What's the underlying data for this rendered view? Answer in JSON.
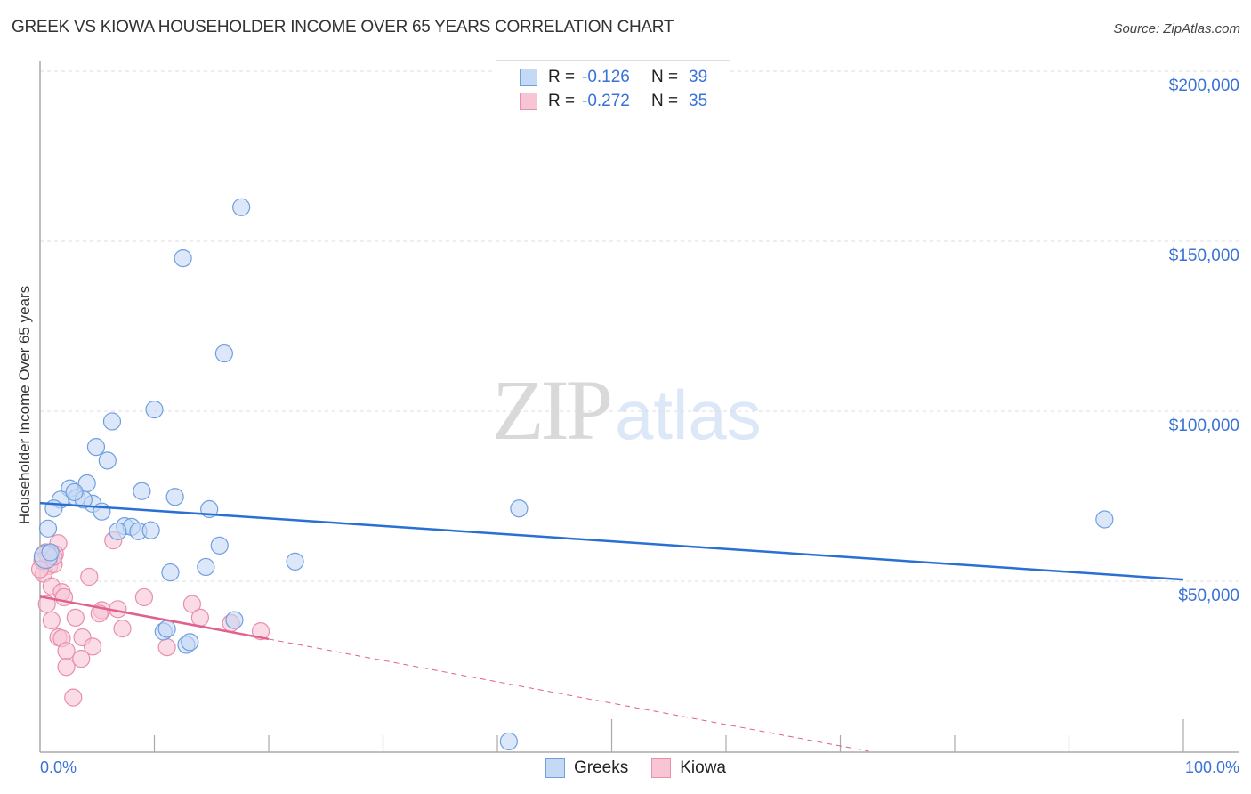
{
  "header": {
    "title": "GREEK VS KIOWA HOUSEHOLDER INCOME OVER 65 YEARS CORRELATION CHART",
    "source": "Source: ZipAtlas.com"
  },
  "colors": {
    "greeks_fill": "#c5d9f5",
    "greeks_stroke": "#6f9fe0",
    "greeks_line": "#2a6fd4",
    "kiowa_fill": "#f8c5d5",
    "kiowa_stroke": "#e88fab",
    "kiowa_line": "#e0608e",
    "axis_label": "#3a72d8",
    "grid": "#dddddd"
  },
  "legend_top": {
    "greeks": {
      "r_label": "R =",
      "r_value": "-0.126",
      "n_label": "N =",
      "n_value": "39"
    },
    "kiowa": {
      "r_label": "R =",
      "r_value": "-0.272",
      "n_label": "N =",
      "n_value": "35"
    }
  },
  "legend_bottom": {
    "greeks": "Greeks",
    "kiowa": "Kiowa"
  },
  "watermark": {
    "zip": "ZIP",
    "atlas": "atlas"
  },
  "axes": {
    "ylabel": "Householder Income Over 65 years",
    "yticks": [
      "$200,000",
      "$150,000",
      "$100,000",
      "$50,000"
    ],
    "xticks": [
      "0.0%",
      "100.0%"
    ]
  },
  "chart_data": {
    "type": "scatter",
    "title": "GREEK VS KIOWA HOUSEHOLDER INCOME OVER 65 YEARS CORRELATION CHART",
    "xlabel": "",
    "ylabel": "Householder Income Over 65 years",
    "xlim": [
      0,
      100
    ],
    "ylim": [
      0,
      205000
    ],
    "x_unit": "%",
    "grid": true,
    "legend_position": "top-center",
    "series": [
      {
        "name": "Greeks",
        "R": -0.126,
        "N": 39,
        "points": [
          [
            17.6,
            160000
          ],
          [
            12.5,
            145000
          ],
          [
            16.1,
            117000
          ],
          [
            10.0,
            100500
          ],
          [
            6.3,
            97000
          ],
          [
            4.9,
            89500
          ],
          [
            5.9,
            85500
          ],
          [
            4.1,
            78800
          ],
          [
            2.6,
            77300
          ],
          [
            8.9,
            76500
          ],
          [
            1.8,
            74000
          ],
          [
            3.2,
            74500
          ],
          [
            11.8,
            74800
          ],
          [
            1.2,
            71400
          ],
          [
            4.6,
            72800
          ],
          [
            5.4,
            70500
          ],
          [
            14.8,
            71200
          ],
          [
            41.9,
            71400
          ],
          [
            93.1,
            68200
          ],
          [
            7.4,
            66200
          ],
          [
            8.0,
            66000
          ],
          [
            8.6,
            64700
          ],
          [
            9.7,
            65000
          ],
          [
            6.8,
            64700
          ],
          [
            0.7,
            65500
          ],
          [
            15.7,
            60500
          ],
          [
            22.3,
            55800
          ],
          [
            11.4,
            52600
          ],
          [
            14.5,
            54200
          ],
          [
            17.0,
            38600
          ],
          [
            10.8,
            35200
          ],
          [
            11.1,
            36000
          ],
          [
            12.8,
            31300
          ],
          [
            13.1,
            32100
          ],
          [
            41.0,
            2900
          ],
          [
            0.5,
            57200
          ],
          [
            0.9,
            58500
          ],
          [
            3.8,
            74000
          ],
          [
            3.0,
            76200
          ]
        ],
        "trend": {
          "x": [
            0,
            100
          ],
          "y": [
            73000,
            50500
          ]
        }
      },
      {
        "name": "Kiowa",
        "R": -0.272,
        "N": 35,
        "points": [
          [
            6.4,
            62000
          ],
          [
            1.6,
            61200
          ],
          [
            1.3,
            58000
          ],
          [
            0.5,
            58500
          ],
          [
            0.8,
            54500
          ],
          [
            0.3,
            52200
          ],
          [
            1.0,
            48500
          ],
          [
            4.3,
            51300
          ],
          [
            1.9,
            46800
          ],
          [
            2.1,
            45300
          ],
          [
            9.1,
            45300
          ],
          [
            0.6,
            43300
          ],
          [
            13.3,
            43300
          ],
          [
            5.4,
            41500
          ],
          [
            6.8,
            41800
          ],
          [
            3.1,
            39300
          ],
          [
            14.0,
            39300
          ],
          [
            1.0,
            38500
          ],
          [
            5.2,
            40500
          ],
          [
            7.2,
            36100
          ],
          [
            16.7,
            37700
          ],
          [
            19.3,
            35300
          ],
          [
            1.6,
            33500
          ],
          [
            3.7,
            33500
          ],
          [
            1.9,
            33200
          ],
          [
            4.6,
            30800
          ],
          [
            11.1,
            30600
          ],
          [
            2.3,
            29500
          ],
          [
            3.6,
            27200
          ],
          [
            2.3,
            24800
          ],
          [
            2.9,
            15800
          ],
          [
            0.2,
            56000
          ],
          [
            1.2,
            55000
          ],
          [
            1.2,
            57200
          ],
          [
            0.0,
            53500
          ]
        ],
        "trend": {
          "x": [
            0,
            20
          ],
          "y": [
            45500,
            33000
          ]
        },
        "trend_extended_dashed": {
          "x": [
            20,
            72.5
          ],
          "y": [
            33000,
            0
          ]
        }
      }
    ]
  }
}
